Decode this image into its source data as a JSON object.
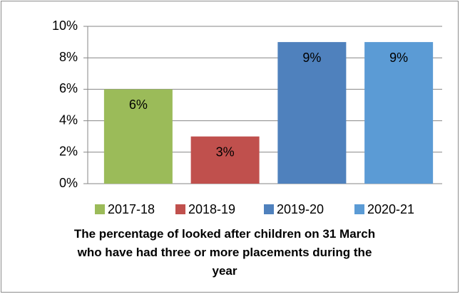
{
  "chart_data": {
    "type": "bar",
    "title": "The percentage of looked after children on 31 March who have had three or more placements during the year",
    "categories": [
      "2017-18",
      "2018-19",
      "2019-20",
      "2020-21"
    ],
    "values": [
      6,
      3,
      9,
      9
    ],
    "value_labels": [
      "6%",
      "3%",
      "9%",
      "9%"
    ],
    "colors": [
      "#9bbb59",
      "#c0504d",
      "#4f81bd",
      "#5b9bd5"
    ],
    "ylim": [
      0,
      10
    ],
    "yticks": [
      {
        "value": 0,
        "label": "0%"
      },
      {
        "value": 2,
        "label": "2%"
      },
      {
        "value": 4,
        "label": "4%"
      },
      {
        "value": 6,
        "label": "6%"
      },
      {
        "value": 8,
        "label": "8%"
      },
      {
        "value": 10,
        "label": "10%"
      }
    ],
    "grid": true,
    "legend": "bottom"
  }
}
